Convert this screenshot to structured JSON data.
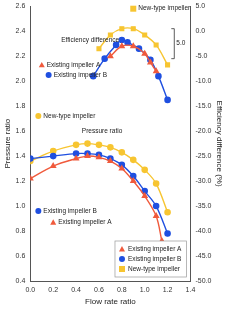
{
  "chart_data": {
    "type": "line",
    "x_label": "Flow rate ratio",
    "y_label": "Pressure ratio",
    "y2_label": "Efficiency difference (%)",
    "xlim": [
      0,
      1.4
    ],
    "xticks": [
      {
        "value": 0,
        "label": "0.0"
      },
      0.2,
      0.4,
      0.6,
      0.8,
      {
        "value": 1,
        "label": "1.0"
      },
      1.2,
      1.4
    ],
    "ylim": [
      0.4,
      2.6
    ],
    "yticks": [
      0.4,
      0.6,
      0.8,
      {
        "value": 1,
        "label": "1.0"
      },
      1.2,
      1.4,
      1.6,
      1.8,
      {
        "value": 2,
        "label": "2.0"
      },
      2.2,
      2.4,
      2.6
    ],
    "y2lim": [
      -50,
      5
    ],
    "y2ticks": [
      {
        "value": 5,
        "label": "5.0"
      },
      {
        "value": 0,
        "label": "0.0"
      },
      {
        "value": -5,
        "label": "-5.0"
      },
      {
        "value": -10,
        "label": "-10.0"
      },
      {
        "value": -15,
        "label": "-15.0"
      },
      {
        "value": -20,
        "label": "-20.0"
      },
      {
        "value": -25,
        "label": "-25.0"
      },
      {
        "value": -30,
        "label": "-30.0"
      },
      {
        "value": -35,
        "label": "-35.0"
      },
      {
        "value": -40,
        "label": "-40.0"
      },
      {
        "value": -45,
        "label": "-45.0"
      },
      {
        "value": -50,
        "label": "-50.0"
      }
    ],
    "grid": false,
    "legend": "lower right",
    "series": [
      {
        "name": "Existing impeller A",
        "color": "#f05a3c",
        "marker": "triangle",
        "line_style": "solid",
        "axis": "y2",
        "x": [
          0.7,
          0.8,
          0.9,
          1.0,
          1.05,
          1.1
        ],
        "values": [
          -5,
          -3,
          -3,
          -4.5,
          -6.25,
          -8
        ]
      },
      {
        "name": "Existing impeller B",
        "color": "#1f4fe0",
        "marker": "circle",
        "line_style": "solid",
        "axis": "y2",
        "x": [
          0.55,
          0.65,
          0.75,
          0.8,
          0.85,
          0.95,
          1.05,
          1.12,
          1.2
        ],
        "values": [
          -9,
          -5.5,
          -2.75,
          -1.75,
          -2.25,
          -3.5,
          -5.75,
          -9,
          -13.75
        ]
      },
      {
        "name": "New-type impeller",
        "color": "#f7c531",
        "marker": "square",
        "line_style": "solid",
        "axis": "y2",
        "x": [
          0.6,
          0.7,
          0.8,
          0.9,
          1.0,
          1.1,
          1.2
        ],
        "values": [
          -3.5,
          -0.75,
          0.5,
          0.5,
          -0.75,
          -2.75,
          -6.75
        ]
      },
      {
        "name": "Existing impeller A",
        "color": "#f05a3c",
        "marker": "triangle",
        "line_style": "solid",
        "axis": "y",
        "x": [
          0.0,
          0.2,
          0.4,
          0.5,
          0.6,
          0.7,
          0.8,
          0.9,
          1.0,
          1.1,
          1.15
        ],
        "values": [
          1.22,
          1.32,
          1.38,
          1.4,
          1.39,
          1.36,
          1.3,
          1.2,
          1.08,
          0.92,
          0.72
        ]
      },
      {
        "name": "Existing impeller B",
        "color": "#1f4fe0",
        "marker": "circle",
        "line_style": "solid",
        "axis": "y",
        "x": [
          0.0,
          0.2,
          0.4,
          0.5,
          0.6,
          0.7,
          0.8,
          0.9,
          1.0,
          1.1,
          1.2
        ],
        "values": [
          1.38,
          1.4,
          1.42,
          1.42,
          1.41,
          1.38,
          1.33,
          1.24,
          1.12,
          1.0,
          0.78
        ]
      },
      {
        "name": "New-type impeller",
        "color": "#f7c531",
        "marker": "circle",
        "line_style": "solid",
        "axis": "y",
        "x": [
          0.0,
          0.2,
          0.4,
          0.5,
          0.6,
          0.7,
          0.8,
          0.9,
          1.0,
          1.1,
          1.2
        ],
        "values": [
          1.36,
          1.44,
          1.49,
          1.5,
          1.49,
          1.47,
          1.43,
          1.37,
          1.29,
          1.18,
          0.95
        ]
      }
    ],
    "annotations": [
      "New-type impeller",
      "Efficiency difference",
      "Existing impeller A",
      "Existing impeller B",
      "New-type impeller",
      "Pressure ratio",
      "Existing impeller B",
      "Existing impeller A",
      "5.0"
    ]
  }
}
